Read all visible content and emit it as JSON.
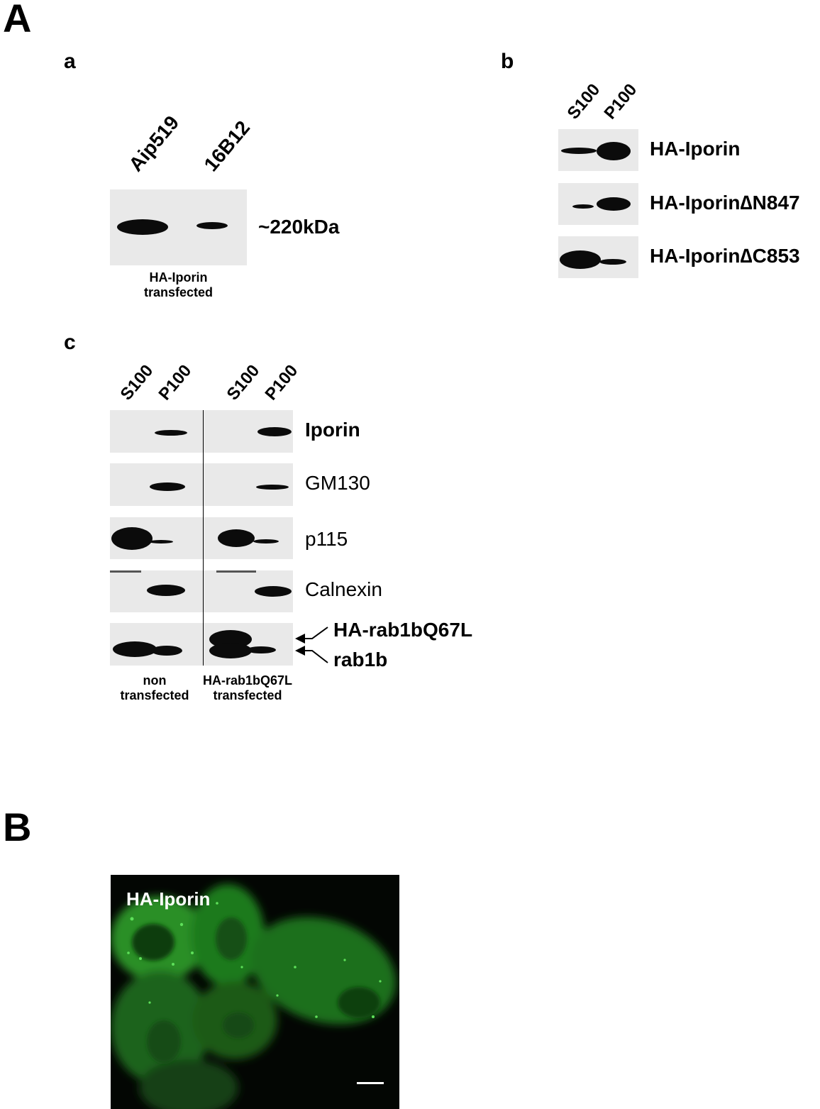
{
  "panels": {
    "A": "A",
    "B": "B",
    "a": "a",
    "b": "b",
    "c": "c"
  },
  "panel_a": {
    "lanes": [
      "Aip519",
      "16B12"
    ],
    "size_marker": "~220kDa",
    "caption_line1": "HA-Iporin",
    "caption_line2": "transfected"
  },
  "panel_b": {
    "lanes": [
      "S100",
      "P100"
    ],
    "rows": [
      "HA-Iporin",
      "HA-Iporin∆N847",
      "HA-Iporin∆C853"
    ]
  },
  "panel_c": {
    "lanes": [
      "S100",
      "P100",
      "S100",
      "P100"
    ],
    "rows": [
      "Iporin",
      "GM130",
      "p115",
      "Calnexin"
    ],
    "arrow_labels": [
      "HA-rab1bQ67L",
      "rab1b"
    ],
    "caption_left_line1": "non",
    "caption_left_line2": "transfected",
    "caption_right_line1": "HA-rab1bQ67L",
    "caption_right_line2": "transfected"
  },
  "panel_B": {
    "image_label": "HA-Iporin",
    "colors": {
      "stain": "#3fd23a",
      "background": "#030603"
    }
  }
}
